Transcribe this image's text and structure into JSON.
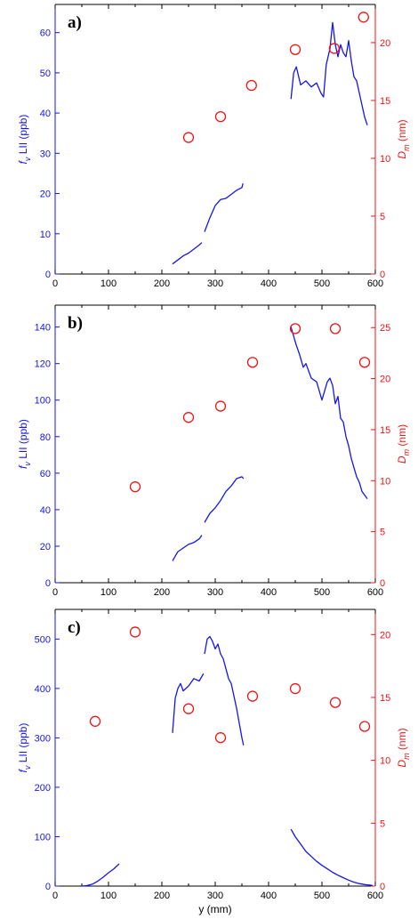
{
  "colors": {
    "left_axis": "#1515ee",
    "right_axis": "#ee1515",
    "frame": "#000000"
  },
  "chart_data": [
    {
      "type": "line",
      "panel_label": "a)",
      "xlabel": "",
      "ylabel_parts": {
        "f": "f",
        "sub": "v",
        "rest": " LII (ppb)"
      },
      "y2label_parts": {
        "d": "D",
        "sub": "m",
        "rest": " (nm)"
      },
      "xlim": [
        0,
        600
      ],
      "ylim": [
        0,
        67
      ],
      "y2lim": [
        0,
        23.3
      ],
      "x_ticks": [
        "0",
        "100",
        "200",
        "300",
        "400",
        "500",
        "600"
      ],
      "y_ticks": [
        "0",
        "10",
        "20",
        "30",
        "40",
        "50",
        "60"
      ],
      "y2_ticks": [
        "0",
        "5",
        "10",
        "15",
        "20"
      ],
      "series": [
        {
          "kind": "line",
          "axis": "left",
          "segments": [
            {
              "x": [
                220,
                230,
                240,
                250,
                260,
                270,
                275
              ],
              "y": [
                2.5,
                3.5,
                4.5,
                5.2,
                6.2,
                7.2,
                7.8
              ]
            },
            {
              "x": [
                280,
                290,
                300,
                310,
                320,
                330,
                340,
                350,
                352
              ],
              "y": [
                10.5,
                14,
                17,
                18.5,
                18.8,
                19.8,
                20.8,
                21.5,
                22.5
              ]
            },
            {
              "x": [
                442,
                447,
                452,
                460,
                470,
                480,
                490,
                498,
                503,
                508,
                515,
                520,
                525,
                530,
                535,
                540,
                545,
                550,
                555,
                560,
                565,
                570,
                575,
                580,
                585
              ],
              "y": [
                43.5,
                50,
                51.5,
                47,
                48,
                46.5,
                47.5,
                45,
                44,
                52,
                56,
                62.5,
                57,
                54,
                57,
                55,
                54,
                58,
                53,
                49,
                48,
                45,
                42,
                39,
                37
              ]
            }
          ]
        },
        {
          "kind": "scatter",
          "axis": "right",
          "x": [
            250,
            310,
            368,
            450,
            523,
            578
          ],
          "y": [
            11.8,
            13.6,
            16.3,
            19.4,
            19.5,
            22.2
          ]
        }
      ]
    },
    {
      "type": "line",
      "panel_label": "b)",
      "xlabel": "",
      "ylabel_parts": {
        "f": "f",
        "sub": "v",
        "rest": " LII (ppb)"
      },
      "y2label_parts": {
        "d": "D",
        "sub": "m",
        "rest": " (nm)"
      },
      "xlim": [
        0,
        600
      ],
      "ylim": [
        0,
        152
      ],
      "y2lim": [
        0,
        27.2
      ],
      "x_ticks": [
        "0",
        "100",
        "200",
        "300",
        "400",
        "500",
        "600"
      ],
      "y_ticks": [
        "0",
        "20",
        "40",
        "60",
        "80",
        "100",
        "120",
        "140"
      ],
      "y2_ticks": [
        "0",
        "5",
        "10",
        "15",
        "20",
        "25"
      ],
      "series": [
        {
          "kind": "line",
          "axis": "left",
          "segments": [
            {
              "x": [
                220,
                230,
                240,
                250,
                260,
                270,
                275
              ],
              "y": [
                12,
                17,
                19,
                21,
                22,
                24,
                26
              ]
            },
            {
              "x": [
                280,
                290,
                300,
                310,
                320,
                330,
                340,
                350,
                353
              ],
              "y": [
                33,
                38,
                41,
                45,
                50,
                53,
                57,
                58,
                57
              ]
            },
            {
              "x": [
                442,
                447,
                452,
                458,
                465,
                470,
                480,
                490,
                500,
                510,
                515,
                520,
                525,
                530,
                535,
                540,
                545,
                550,
                555,
                560,
                565,
                570,
                575,
                580,
                585
              ],
              "y": [
                140,
                135,
                130,
                125,
                118,
                120,
                112,
                110,
                100,
                110,
                112,
                108,
                98,
                102,
                90,
                88,
                80,
                75,
                68,
                63,
                58,
                55,
                50,
                48,
                46
              ]
            }
          ]
        },
        {
          "kind": "scatter",
          "axis": "right",
          "x": [
            150,
            250,
            310,
            370,
            450,
            525,
            580
          ],
          "y": [
            9.4,
            16.2,
            17.3,
            21.6,
            24.9,
            24.9,
            21.6
          ]
        }
      ]
    },
    {
      "type": "line",
      "panel_label": "c)",
      "xlabel": "y (mm)",
      "ylabel_parts": {
        "f": "f",
        "sub": "v",
        "rest": " LII (ppb)"
      },
      "y2label_parts": {
        "d": "D",
        "sub": "m",
        "rest": " (nm)"
      },
      "xlim": [
        0,
        600
      ],
      "ylim": [
        0,
        560
      ],
      "y2lim": [
        0,
        22
      ],
      "x_ticks": [
        "0",
        "100",
        "200",
        "300",
        "400",
        "500",
        "600"
      ],
      "y_ticks": [
        "0",
        "100",
        "200",
        "300",
        "400",
        "500"
      ],
      "y2_ticks": [
        "0",
        "5",
        "10",
        "15",
        "20"
      ],
      "series": [
        {
          "kind": "line",
          "axis": "left",
          "segments": [
            {
              "x": [
                50,
                60,
                70,
                80,
                90,
                100,
                110,
                120
              ],
              "y": [
                0,
                1,
                4,
                10,
                18,
                27,
                35,
                45
              ]
            },
            {
              "x": [
                220,
                225,
                230,
                235,
                240,
                250,
                260,
                270,
                278
              ],
              "y": [
                310,
                380,
                400,
                410,
                395,
                405,
                420,
                415,
                430
              ]
            },
            {
              "x": [
                280,
                285,
                290,
                295,
                300,
                305,
                310,
                315,
                320,
                325,
                330,
                335,
                340,
                345,
                350,
                353
              ],
              "y": [
                470,
                500,
                505,
                495,
                480,
                490,
                470,
                460,
                440,
                420,
                410,
                385,
                360,
                330,
                300,
                285
              ]
            },
            {
              "x": [
                442,
                450,
                460,
                470,
                480,
                490,
                500,
                510,
                520,
                530,
                540,
                550,
                560,
                570,
                580,
                590,
                595
              ],
              "y": [
                115,
                100,
                85,
                70,
                60,
                50,
                42,
                35,
                28,
                22,
                17,
                12,
                8,
                5,
                3,
                2,
                1
              ]
            }
          ]
        },
        {
          "kind": "scatter",
          "axis": "right",
          "x": [
            75,
            150,
            250,
            310,
            370,
            450,
            525,
            580
          ],
          "y": [
            13.1,
            20.2,
            14.1,
            11.8,
            15.1,
            15.7,
            14.6,
            12.7
          ]
        }
      ]
    }
  ]
}
